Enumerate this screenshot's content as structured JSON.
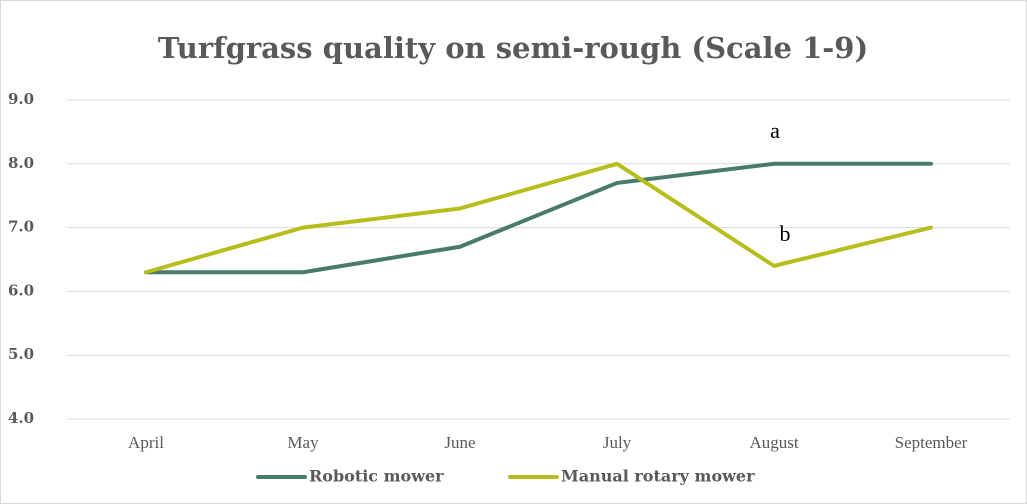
{
  "chart_data": {
    "type": "line",
    "title": "Turfgrass quality on semi-rough (Scale 1-9)",
    "categories": [
      "April",
      "May",
      "June",
      "July",
      "August",
      "September"
    ],
    "series": [
      {
        "name": "Robotic mower",
        "color": "#487b6c",
        "values": [
          6.3,
          6.3,
          6.7,
          7.7,
          8.0,
          8.0
        ]
      },
      {
        "name": "Manual rotary mower",
        "color": "#b7be1c",
        "values": [
          6.3,
          7.0,
          7.3,
          8.0,
          6.4,
          7.0
        ]
      }
    ],
    "annotations": [
      "a",
      "b"
    ],
    "ylim": [
      4,
      9
    ],
    "yticks": [
      {
        "value": 4,
        "label": "4.0"
      },
      {
        "value": 5,
        "label": "5.0"
      },
      {
        "value": 6,
        "label": "6.0"
      },
      {
        "value": 7,
        "label": "7.0"
      },
      {
        "value": 8,
        "label": "8.0"
      },
      {
        "value": 9,
        "label": "9.0"
      }
    ],
    "grid": true,
    "legend": "bottom"
  }
}
